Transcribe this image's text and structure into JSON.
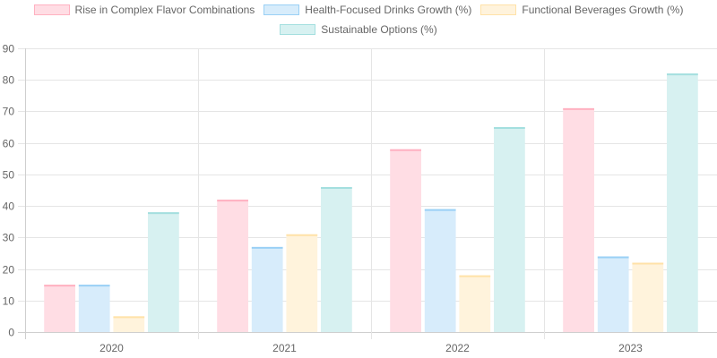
{
  "chart_data": {
    "type": "bar",
    "title": "",
    "xlabel": "",
    "ylabel": "",
    "categories": [
      "2020",
      "2021",
      "2022",
      "2023"
    ],
    "ylim": [
      0,
      90
    ],
    "yticks": [
      0,
      10,
      20,
      30,
      40,
      50,
      60,
      70,
      80,
      90
    ],
    "grid": true,
    "legend_position": "top",
    "series": [
      {
        "name": "Rise in Complex Flavor Combinations",
        "values": [
          15,
          42,
          58,
          71
        ],
        "fill": "#ffdde4",
        "border": "#ffb1c1"
      },
      {
        "name": "Health-Focused Drinks Growth (%)",
        "values": [
          15,
          27,
          39,
          24
        ],
        "fill": "#d7ecfb",
        "border": "#9ad0f5"
      },
      {
        "name": "Functional Beverages Growth (%)",
        "values": [
          5,
          31,
          18,
          22
        ],
        "fill": "#fff3dc",
        "border": "#ffe2a8"
      },
      {
        "name": "Sustainable Options (%)",
        "values": [
          38,
          46,
          65,
          82
        ],
        "fill": "#d7f1f1",
        "border": "#a4dfdf"
      }
    ]
  }
}
